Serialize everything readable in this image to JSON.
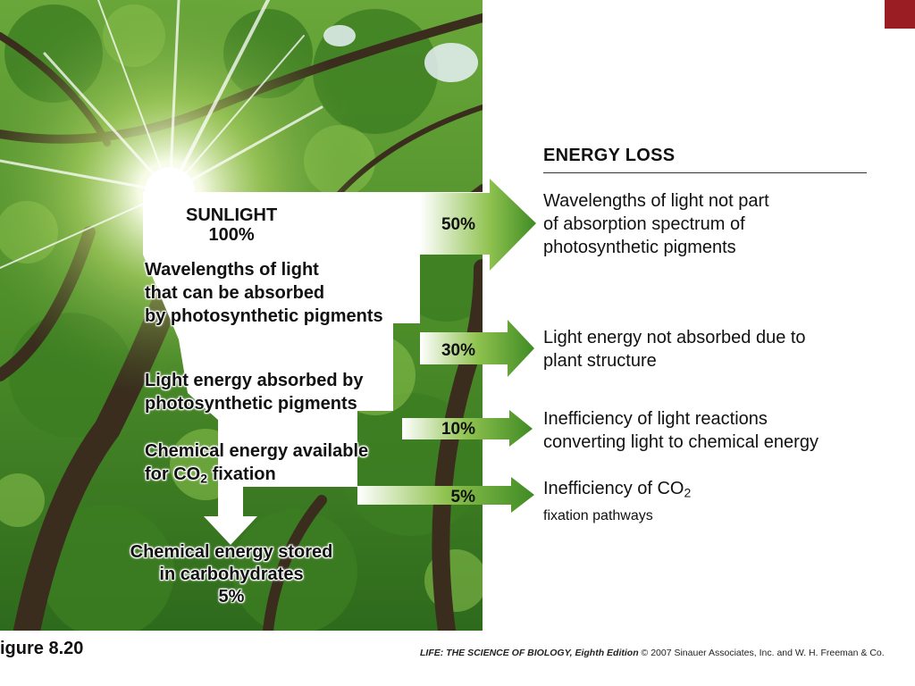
{
  "energy_loss_header": "ENERGY LOSS",
  "stages": {
    "sunlight": {
      "title": "SUNLIGHT",
      "value": "100%"
    },
    "absorbable": [
      "Wavelengths of light",
      "that can be absorbed",
      "by photosynthetic pigments"
    ],
    "absorbed": [
      "Light energy absorbed by",
      "photosynthetic pigments"
    ],
    "available": {
      "line1": "Chemical energy available",
      "line2_prefix": "for CO",
      "line2_sub": "2",
      "line2_suffix": " fixation"
    },
    "stored": {
      "lines": [
        "Chemical energy stored",
        "in carbohydrates"
      ],
      "value": "5%"
    }
  },
  "losses": [
    {
      "percent": "50%",
      "lines": [
        "Wavelengths of light not part",
        "of absorption spectrum of",
        "photosynthetic pigments"
      ]
    },
    {
      "percent": "30%",
      "lines": [
        "Light energy not absorbed due to",
        "plant structure"
      ]
    },
    {
      "percent": "10%",
      "lines": [
        "Inefficiency of light reactions",
        "converting light to chemical energy"
      ]
    },
    {
      "percent": "5%",
      "line1_prefix": "Inefficiency of CO",
      "line1_sub": "2",
      "line2": "fixation pathways"
    }
  ],
  "figure_label": "igure 8.20",
  "credit": {
    "title": "LIFE: THE SCIENCE OF BIOLOGY, Eighth Edition",
    "rest": "  © 2007 Sinauer Associates, Inc. and W. H. Freeman & Co."
  },
  "colors": {
    "corner_box": "#9b1d24",
    "arrow_green": "#5aa02c",
    "text": "#111111"
  }
}
